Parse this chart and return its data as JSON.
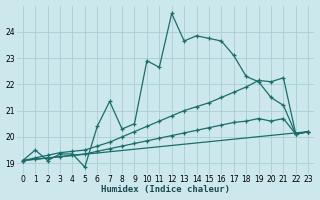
{
  "xlabel": "Humidex (Indice chaleur)",
  "background_color": "#cce8ec",
  "grid_color": "#aacdd4",
  "line_color": "#1a6e6a",
  "xlim": [
    -0.5,
    23.5
  ],
  "ylim": [
    18.6,
    25.0
  ],
  "yticks": [
    19,
    20,
    21,
    22,
    23,
    24
  ],
  "xticks": [
    0,
    1,
    2,
    3,
    4,
    5,
    6,
    7,
    8,
    9,
    10,
    11,
    12,
    13,
    14,
    15,
    16,
    17,
    18,
    19,
    20,
    21,
    22,
    23
  ],
  "line1_x": [
    0,
    1,
    2,
    3,
    4,
    5,
    6,
    7,
    8,
    9,
    10,
    11,
    12,
    13,
    14,
    15,
    16,
    17,
    18,
    19,
    20,
    21,
    22,
    23
  ],
  "line1_y": [
    19.1,
    19.5,
    19.1,
    19.35,
    19.35,
    18.85,
    20.4,
    21.35,
    20.3,
    20.5,
    22.9,
    22.65,
    24.7,
    23.65,
    23.85,
    23.75,
    23.65,
    23.1,
    22.3,
    22.1,
    21.5,
    21.2,
    20.1,
    20.2
  ],
  "line2_x": [
    0,
    1,
    2,
    3,
    4,
    5,
    6,
    7,
    8,
    9,
    10,
    11,
    12,
    13,
    14,
    15,
    16,
    17,
    18,
    19,
    20,
    21,
    22,
    23
  ],
  "line2_y": [
    19.1,
    19.2,
    19.3,
    19.4,
    19.45,
    19.5,
    19.65,
    19.8,
    20.0,
    20.2,
    20.4,
    20.6,
    20.8,
    21.0,
    21.15,
    21.3,
    21.5,
    21.7,
    21.9,
    22.15,
    22.1,
    22.25,
    20.1,
    20.2
  ],
  "line3_x": [
    0,
    1,
    2,
    3,
    4,
    5,
    6,
    7,
    8,
    9,
    10,
    11,
    12,
    13,
    14,
    15,
    16,
    17,
    18,
    19,
    20,
    21,
    22,
    23
  ],
  "line3_y": [
    19.1,
    19.15,
    19.2,
    19.25,
    19.3,
    19.35,
    19.45,
    19.55,
    19.65,
    19.75,
    19.85,
    19.95,
    20.05,
    20.15,
    20.25,
    20.35,
    20.45,
    20.55,
    20.6,
    20.7,
    20.6,
    20.7,
    20.1,
    20.2
  ],
  "line4_x": [
    0,
    23
  ],
  "line4_y": [
    19.1,
    20.2
  ]
}
